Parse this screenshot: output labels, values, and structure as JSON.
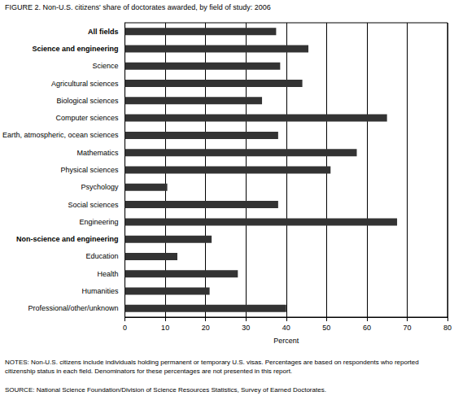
{
  "chart_data": {
    "type": "bar",
    "title": "FIGURE 2.  Non-U.S. citizens' share of doctorates awarded, by field of study: 2006",
    "categories": [
      "All fields",
      "Science and engineering",
      "Science",
      "Agricultural sciences",
      "Biological sciences",
      "Computer sciences",
      "Earth, atmospheric, ocean sciences",
      "Mathematics",
      "Physical sciences",
      "Psychology",
      "Social sciences",
      "Engineering",
      "Non-science and engineering",
      "Education",
      "Health",
      "Humanities",
      "Professional/other/unknown"
    ],
    "values": [
      37.5,
      45.5,
      38.5,
      44,
      34,
      65,
      38,
      57.5,
      51,
      10.5,
      38,
      67.5,
      21.5,
      13,
      28,
      21,
      40
    ],
    "color": "#333333",
    "orientation": "horizontal",
    "xlabel": "Percent",
    "xlim": [
      0,
      80
    ],
    "xticks": [
      0,
      10,
      20,
      30,
      40,
      50,
      60,
      70,
      80
    ],
    "grid": true,
    "notes": "NOTES:  Non-U.S. citizens include individuals holding permanent or temporary U.S. visas. Percentages are based on respondents who reported citizenship status in each field. Denominators for these percentages are not presented in this report.",
    "source": "SOURCE:  National Science Foundation/Division of Science Resources Statistics, Survey of Earned Doctorates."
  }
}
